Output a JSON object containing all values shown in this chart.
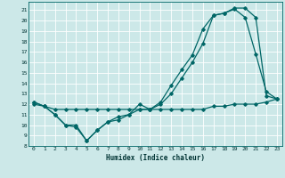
{
  "xlabel": "Humidex (Indice chaleur)",
  "bg_color": "#cce8e8",
  "grid_color": "#b8d8d8",
  "line_color": "#006666",
  "xlim": [
    -0.5,
    23.5
  ],
  "ylim": [
    8,
    21.8
  ],
  "yticks": [
    8,
    9,
    10,
    11,
    12,
    13,
    14,
    15,
    16,
    17,
    18,
    19,
    20,
    21
  ],
  "xticks": [
    0,
    1,
    2,
    3,
    4,
    5,
    6,
    7,
    8,
    9,
    10,
    11,
    12,
    13,
    14,
    15,
    16,
    17,
    18,
    19,
    20,
    21,
    22,
    23
  ],
  "line1_x": [
    0,
    1,
    2,
    3,
    4,
    5,
    6,
    7,
    8,
    9,
    10,
    11,
    12,
    13,
    14,
    15,
    16,
    17,
    18,
    19,
    20,
    21,
    22,
    23
  ],
  "line1_y": [
    12.2,
    11.8,
    11.0,
    10.0,
    9.8,
    8.5,
    9.5,
    10.3,
    10.8,
    11.0,
    11.5,
    11.5,
    12.0,
    13.0,
    14.5,
    16.0,
    17.8,
    20.5,
    20.7,
    21.2,
    21.2,
    20.3,
    12.8,
    12.5
  ],
  "line2_x": [
    0,
    1,
    2,
    3,
    4,
    5,
    6,
    7,
    8,
    9,
    10,
    11,
    12,
    13,
    14,
    15,
    16,
    17,
    18,
    19,
    20,
    21,
    22,
    23
  ],
  "line2_y": [
    12.2,
    11.8,
    11.0,
    10.0,
    10.0,
    8.5,
    9.5,
    10.3,
    10.5,
    11.0,
    12.0,
    11.5,
    12.2,
    13.8,
    15.3,
    16.7,
    19.2,
    20.5,
    20.7,
    21.1,
    20.3,
    16.8,
    13.2,
    12.5
  ],
  "line3_x": [
    0,
    1,
    2,
    3,
    4,
    5,
    6,
    7,
    8,
    9,
    10,
    11,
    12,
    13,
    14,
    15,
    16,
    17,
    18,
    19,
    20,
    21,
    22,
    23
  ],
  "line3_y": [
    12.0,
    11.8,
    11.5,
    11.5,
    11.5,
    11.5,
    11.5,
    11.5,
    11.5,
    11.5,
    11.5,
    11.5,
    11.5,
    11.5,
    11.5,
    11.5,
    11.5,
    11.8,
    11.8,
    12.0,
    12.0,
    12.0,
    12.2,
    12.5
  ]
}
